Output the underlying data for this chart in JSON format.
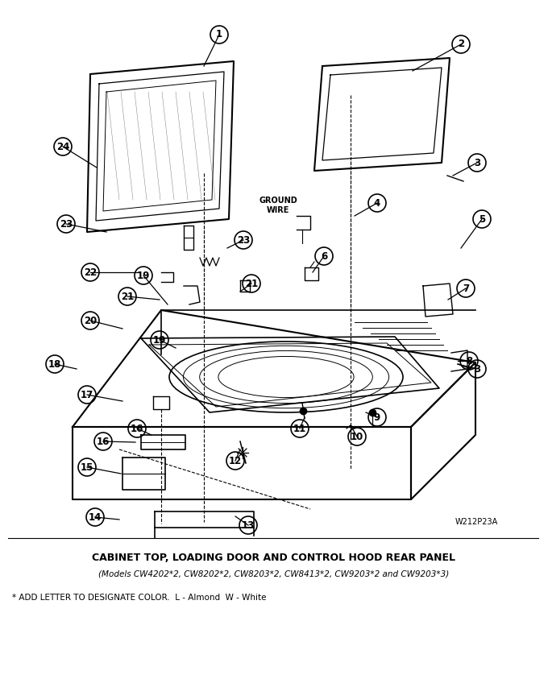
{
  "title": "CABINET TOP, LOADING DOOR AND CONTROL HOOD REAR PANEL",
  "subtitle": "(Models CW4202*2, CW8202*2, CW8203*2, CW8413*2, CW9203*2 and CW9203*3)",
  "footnote": "* ADD LETTER TO DESIGNATE COLOR.  L - Almond  W - White",
  "ref_code": "W212P23A",
  "bg_color": "#ffffff",
  "text_color": "#000000",
  "ground_wire_label": "GROUND\nWIRE"
}
